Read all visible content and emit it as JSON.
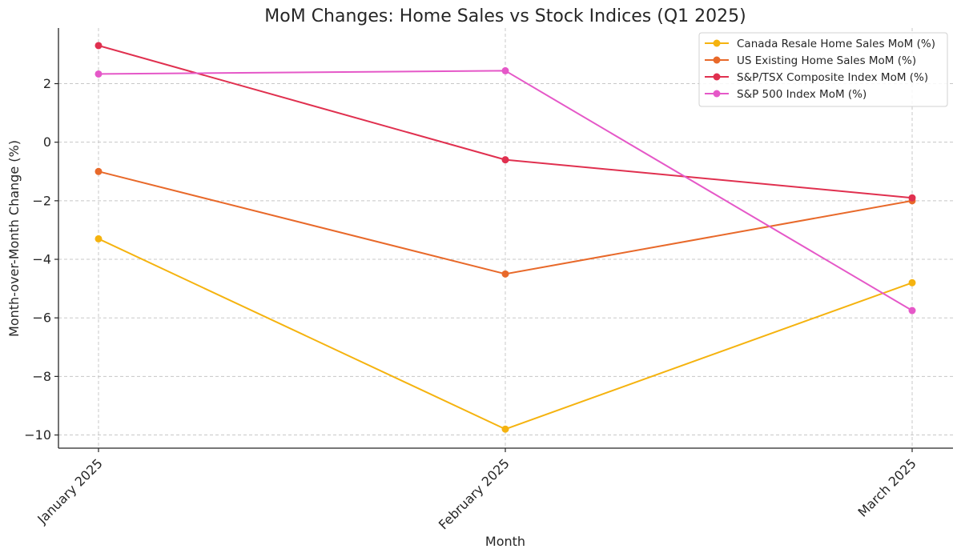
{
  "chart_data": {
    "type": "line",
    "title": "MoM Changes: Home Sales vs Stock Indices (Q1 2025)",
    "xlabel": "Month",
    "ylabel": "Month-over-Month Change (%)",
    "categories": [
      "January 2025",
      "February 2025",
      "March 2025"
    ],
    "ylim": [
      -10.45,
      3.9
    ],
    "yticks": [
      -10,
      -8,
      -6,
      -4,
      -2,
      0,
      2
    ],
    "ytick_labels": [
      "−10",
      "−8",
      "−6",
      "−4",
      "−2",
      "0",
      "2"
    ],
    "grid": true,
    "legend_position": "top-right",
    "series": [
      {
        "name": "Canada Resale Home Sales MoM (%)",
        "values": [
          -3.3,
          -9.8,
          -4.8
        ],
        "color": "#f5b30f"
      },
      {
        "name": "US Existing Home Sales MoM (%)",
        "values": [
          -1.0,
          -4.5,
          -2.0
        ],
        "color": "#e8692a"
      },
      {
        "name": "S&P/TSX Composite Index MoM (%)",
        "values": [
          3.3,
          -0.6,
          -1.9
        ],
        "color": "#e0304f"
      },
      {
        "name": "S&P 500 Index MoM (%)",
        "values": [
          2.33,
          2.44,
          -5.75
        ],
        "color": "#e558c8"
      }
    ]
  }
}
